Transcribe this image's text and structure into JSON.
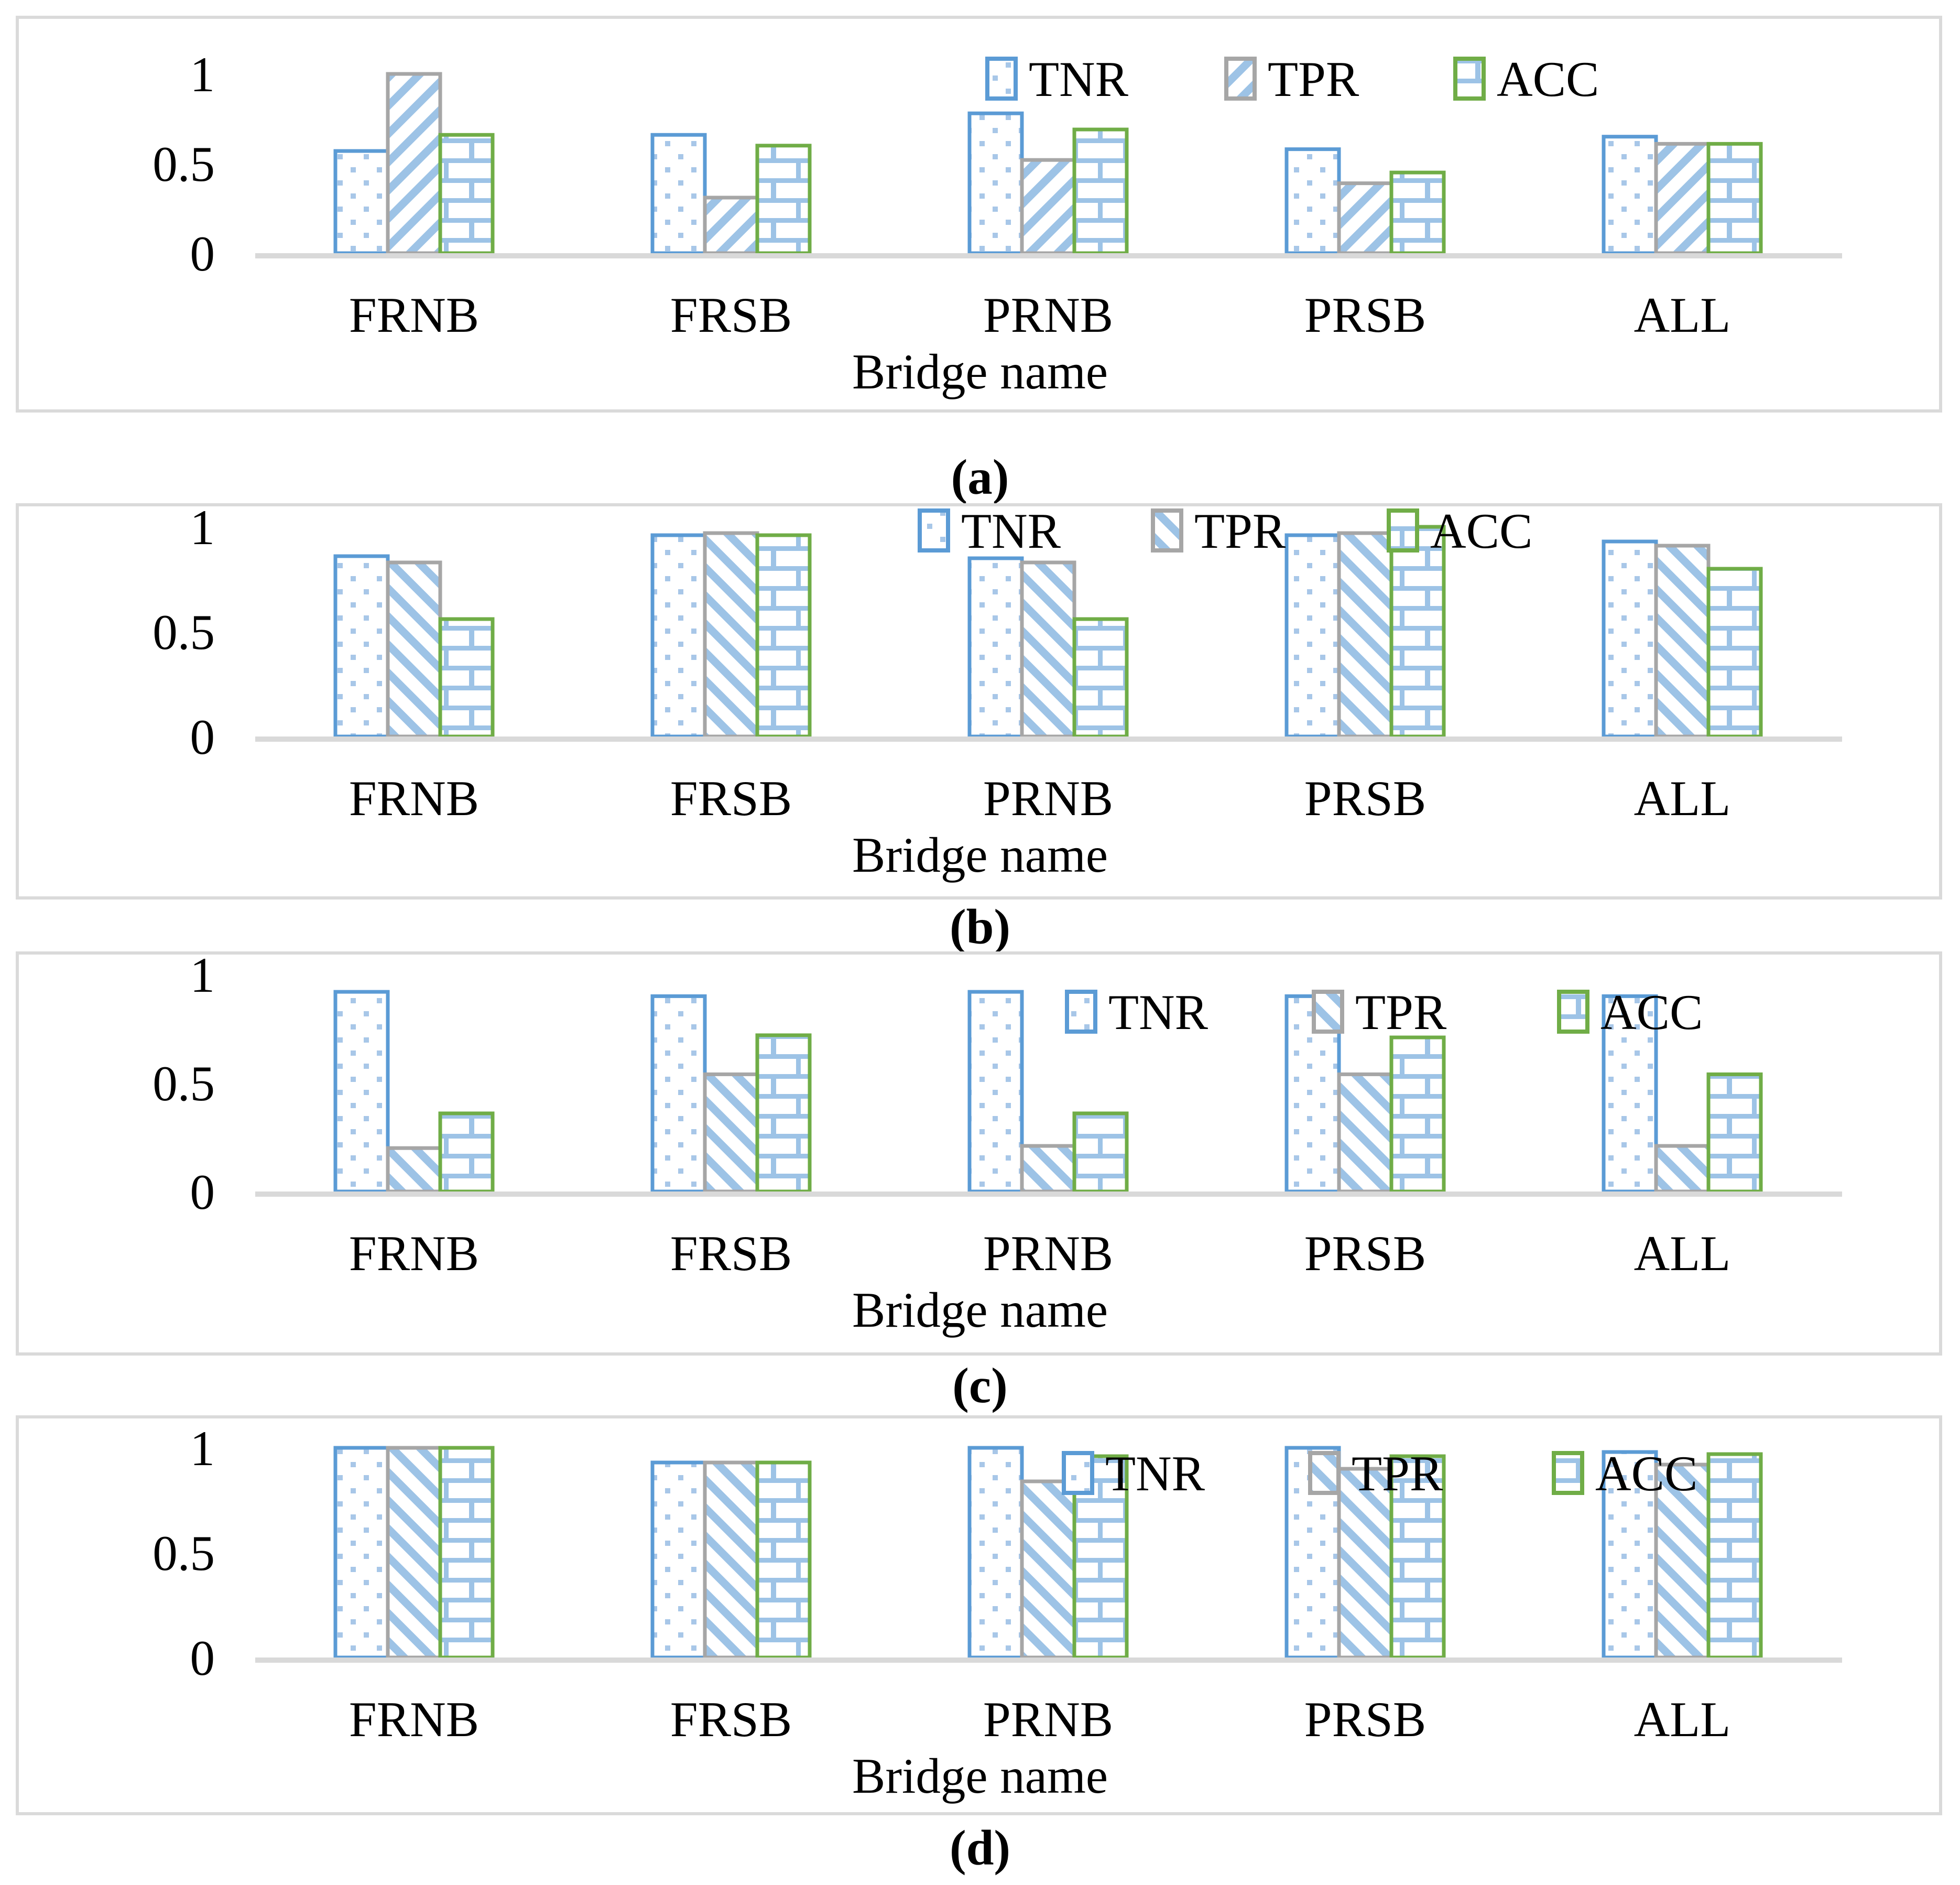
{
  "figure": {
    "captions": [
      "(a)",
      "(b)",
      "(c)",
      "(d)"
    ]
  },
  "colors": {
    "series_border": {
      "TNR": "#5B9BD5",
      "TPR": "#A6A6A6",
      "ACC": "#70AD47"
    },
    "pattern_dot_fill": "#A8C7E8",
    "pattern_line_fill": "#9DC3E6",
    "axis_line": "#D9D9D9",
    "text": "#000000"
  },
  "chart_data": [
    {
      "type": "bar",
      "panel": "(a)",
      "xlabel": "Bridge name",
      "categories": [
        "FRNB",
        "FRSB",
        "PRNB",
        "PRSB",
        "ALL"
      ],
      "series": [
        {
          "name": "TNR",
          "pattern": "dots",
          "values": [
            0.57,
            0.66,
            0.78,
            0.58,
            0.65
          ]
        },
        {
          "name": "TPR",
          "pattern": "stripes",
          "values": [
            1.0,
            0.31,
            0.52,
            0.39,
            0.61
          ]
        },
        {
          "name": "ACC",
          "pattern": "bricks",
          "values": [
            0.66,
            0.6,
            0.69,
            0.45,
            0.61
          ]
        }
      ],
      "ytick_values": [
        0,
        0.5,
        1
      ],
      "ytick_labels": [
        "0",
        "0.5",
        "1"
      ],
      "ylim": [
        0,
        1.08
      ],
      "grid": false,
      "legend_entries": [
        "TNR",
        "TPR",
        "ACC"
      ],
      "legend_position": "inside-top-right"
    },
    {
      "type": "bar",
      "panel": "(b)",
      "xlabel": "Bridge name",
      "categories": [
        "FRNB",
        "FRSB",
        "PRNB",
        "PRSB",
        "ALL"
      ],
      "series": [
        {
          "name": "TNR",
          "pattern": "dots",
          "values": [
            0.86,
            0.96,
            0.85,
            0.96,
            0.93
          ]
        },
        {
          "name": "TPR",
          "pattern": "stripes",
          "values": [
            0.83,
            0.97,
            0.83,
            0.97,
            0.91
          ]
        },
        {
          "name": "ACC",
          "pattern": "bricks",
          "values": [
            0.56,
            0.96,
            0.56,
            1.0,
            0.8
          ]
        }
      ],
      "ytick_values": [
        0,
        0.5,
        1
      ],
      "ytick_labels": [
        "0",
        "0.5",
        "1"
      ],
      "ylim": [
        0,
        1.08
      ],
      "grid": false,
      "legend_entries": [
        "TNR",
        "TPR",
        "ACC"
      ],
      "legend_position": "inside-top-right-overlapping"
    },
    {
      "type": "bar",
      "panel": "(c)",
      "xlabel": "Bridge name",
      "categories": [
        "FRNB",
        "FRSB",
        "PRNB",
        "PRSB",
        "ALL"
      ],
      "series": [
        {
          "name": "TNR",
          "pattern": "dots",
          "values": [
            0.92,
            0.9,
            0.92,
            0.9,
            0.9
          ]
        },
        {
          "name": "TPR",
          "pattern": "stripes",
          "values": [
            0.2,
            0.54,
            0.21,
            0.54,
            0.21
          ]
        },
        {
          "name": "ACC",
          "pattern": "bricks",
          "values": [
            0.36,
            0.72,
            0.36,
            0.71,
            0.54
          ]
        }
      ],
      "ytick_values": [
        0,
        0.5,
        1
      ],
      "ytick_labels": [
        "0",
        "0.5",
        "1"
      ],
      "ylim": [
        0,
        1.08
      ],
      "grid": false,
      "legend_entries": [
        "TNR",
        "TPR",
        "ACC"
      ],
      "legend_position": "inside-top-right-overlapping"
    },
    {
      "type": "bar",
      "panel": "(d)",
      "xlabel": "Bridge name",
      "categories": [
        "FRNB",
        "FRSB",
        "PRNB",
        "PRSB",
        "ALL"
      ],
      "series": [
        {
          "name": "TNR",
          "pattern": "dots",
          "values": [
            1.0,
            0.93,
            1.0,
            1.0,
            0.98
          ]
        },
        {
          "name": "TPR",
          "pattern": "stripes",
          "values": [
            1.0,
            0.93,
            0.84,
            0.9,
            0.92
          ]
        },
        {
          "name": "ACC",
          "pattern": "bricks",
          "values": [
            1.0,
            0.93,
            0.96,
            0.96,
            0.97
          ]
        }
      ],
      "ytick_values": [
        0,
        0.5,
        1
      ],
      "ytick_labels": [
        "0",
        "0.5",
        "1"
      ],
      "ylim": [
        0,
        1.08
      ],
      "grid": false,
      "legend_entries": [
        "TNR",
        "TPR",
        "ACC"
      ],
      "legend_position": "inside-top-right-overlapping"
    }
  ]
}
